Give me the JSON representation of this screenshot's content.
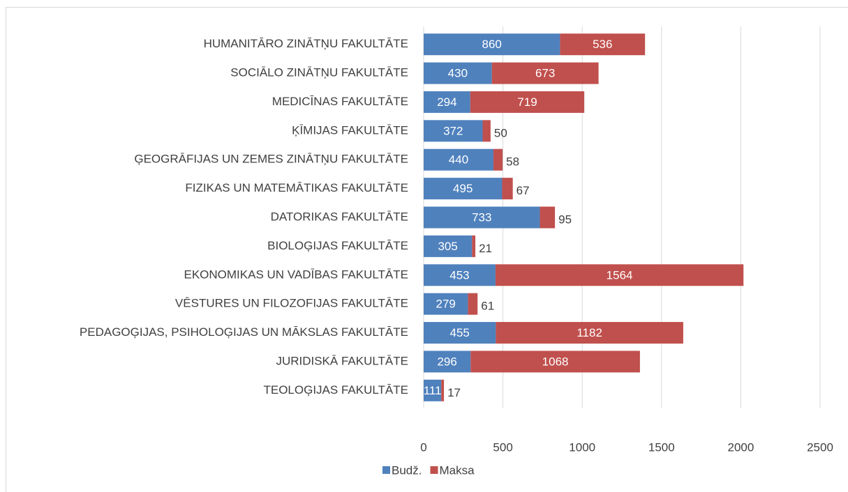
{
  "chart_data": {
    "type": "bar_stacked_horizontal",
    "categories": [
      "HUMANITĀRO ZINĀTŅU FAKULTĀTE",
      "SOCIĀLO ZINĀTŅU FAKULTĀTE",
      "MEDICĪNAS FAKULTĀTE",
      "ĶĪMIJAS FAKULTĀTE",
      "ĢEOGRĀFIJAS UN ZEMES ZINĀTŅU FAKULTĀTE",
      "FIZIKAS UN MATEMĀTIKAS FAKULTĀTE",
      "DATORIKAS FAKULTĀTE",
      "BIOLOĢIJAS FAKULTĀTE",
      "EKONOMIKAS UN VADĪBAS FAKULTĀTE",
      "VĒSTURES UN FILOZOFIJAS FAKULTĀTE",
      "PEDAGOĢIJAS, PSIHOLOĢIJAS UN MĀKSLAS FAKULTĀTE",
      "JURIDISKĀ FAKULTĀTE",
      "TEOLOĢIJAS FAKULTĀTE"
    ],
    "series": [
      {
        "name": "Budž.",
        "color": "#4f81bd",
        "values": [
          860,
          430,
          294,
          372,
          440,
          495,
          733,
          305,
          453,
          279,
          455,
          296,
          111
        ]
      },
      {
        "name": "Maksa",
        "color": "#c0504d",
        "values": [
          536,
          673,
          719,
          50,
          58,
          67,
          95,
          21,
          1564,
          61,
          1182,
          1068,
          17
        ]
      }
    ],
    "xlim": [
      0,
      2500
    ],
    "xticks": [
      0,
      500,
      1000,
      1500,
      2000,
      2500
    ],
    "grid": true,
    "legend": "bottom"
  }
}
